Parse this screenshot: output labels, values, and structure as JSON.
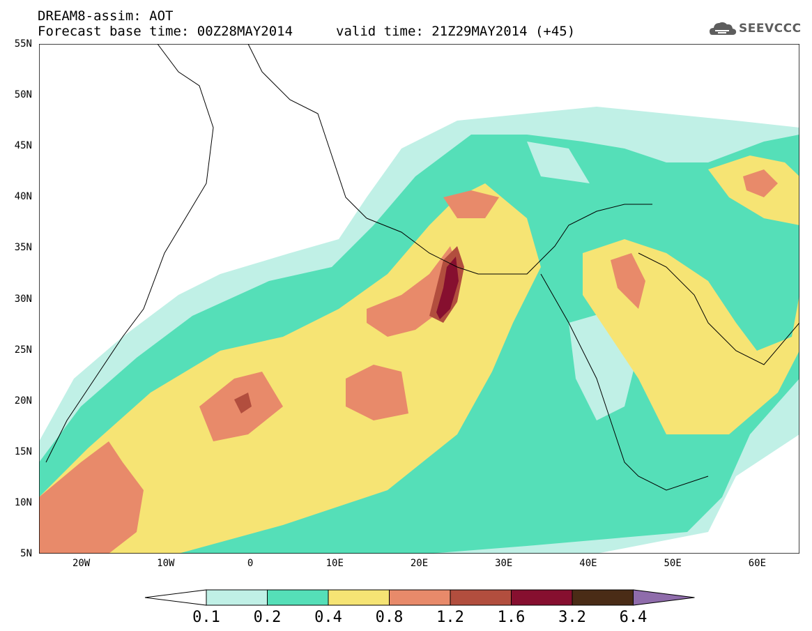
{
  "header": {
    "line1": "DREAM8-assim: AOT",
    "line2": "Forecast base time: 00Z28MAY2014",
    "line3": "valid time: 21Z29MAY2014 (+45)"
  },
  "logo": {
    "text": "SEEVCCC",
    "icon": "cloud-logo-icon"
  },
  "map": {
    "lat_range": [
      5,
      55
    ],
    "lon_range": [
      -25,
      65
    ],
    "lat_ticks": [
      "55N",
      "50N",
      "45N",
      "40N",
      "35N",
      "30N",
      "25N",
      "20N",
      "15N",
      "10N",
      "5N"
    ],
    "lon_ticks": [
      "20W",
      "10W",
      "0",
      "10E",
      "20E",
      "30E",
      "40E",
      "50E",
      "60E"
    ]
  },
  "colorbar": {
    "levels": [
      "0.1",
      "0.2",
      "0.4",
      "0.8",
      "1.2",
      "1.6",
      "3.2",
      "6.4"
    ],
    "colors": [
      "#c0f0e6",
      "#55dfb8",
      "#f6e474",
      "#e88a6a",
      "#b24e3e",
      "#860f2f",
      "#4a2c16",
      "#8f6cab"
    ]
  }
}
